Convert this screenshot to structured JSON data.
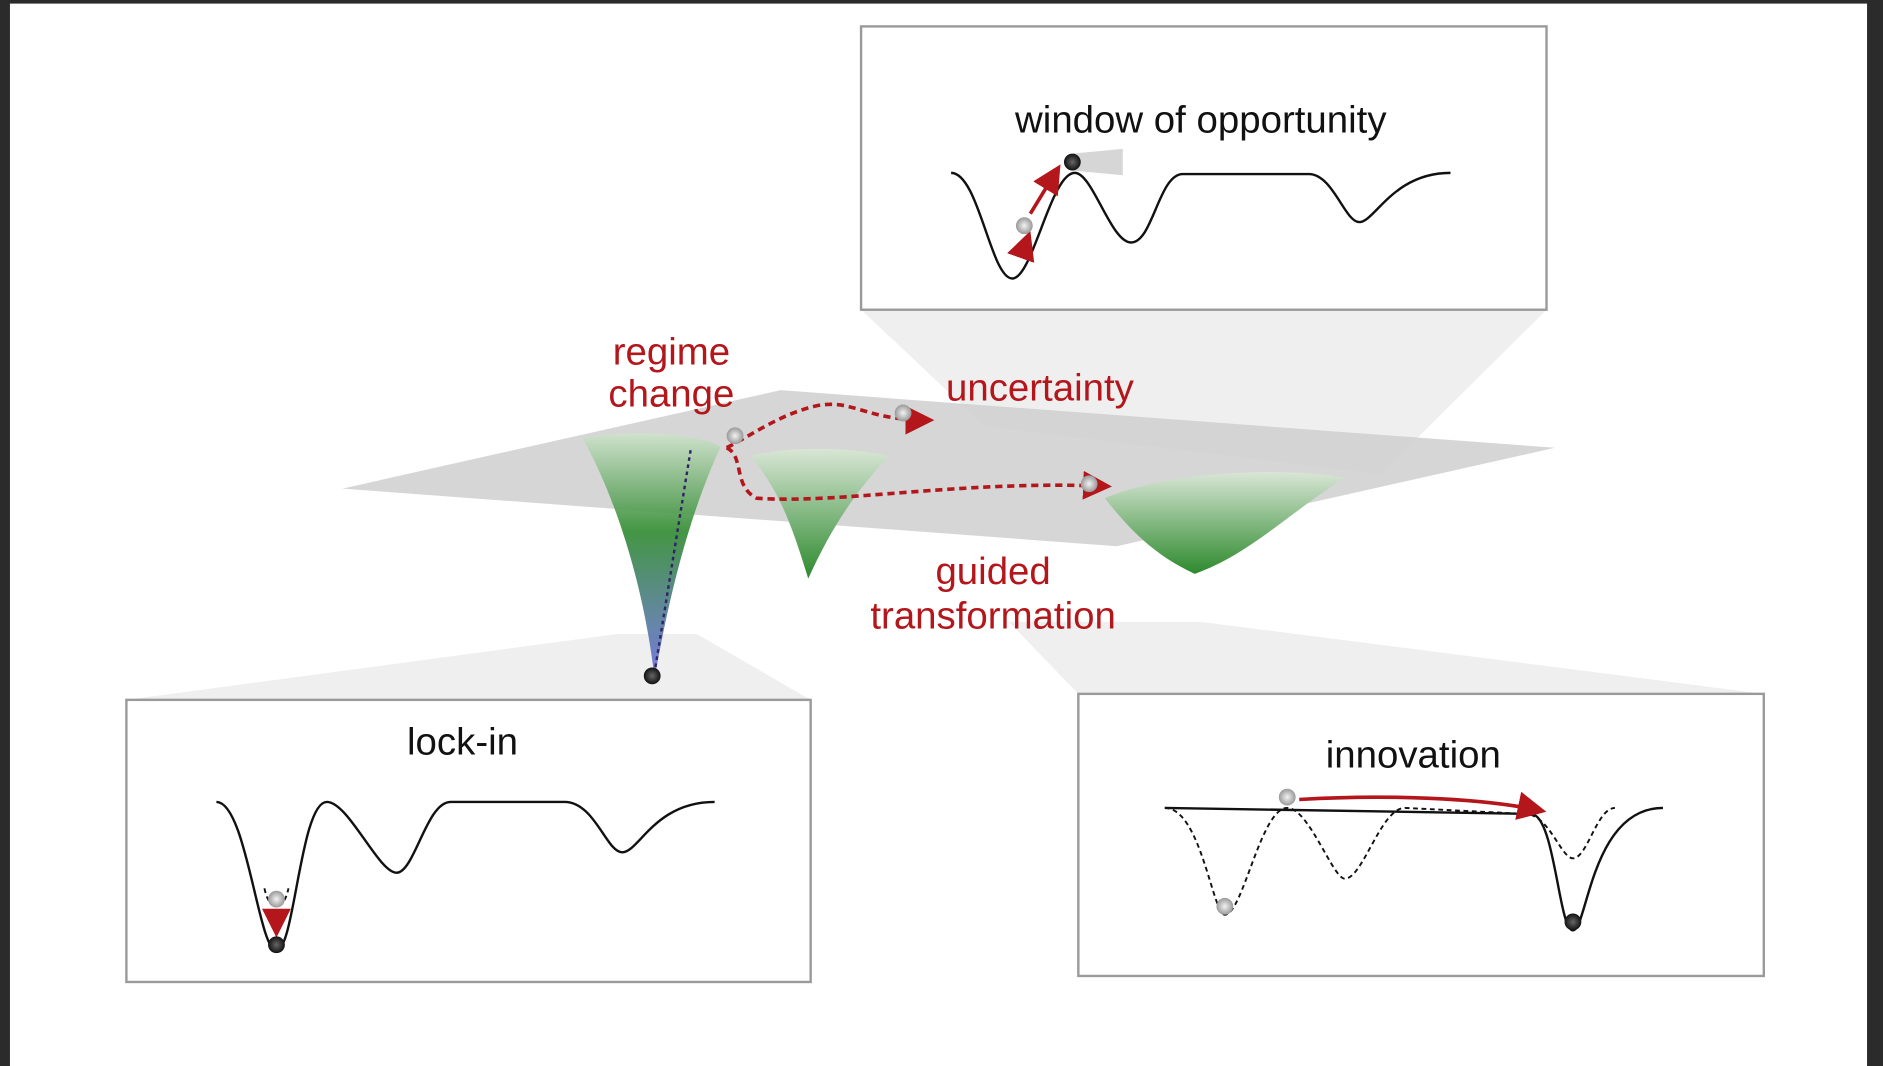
{
  "panels": [
    {
      "title": "window of opportunity"
    },
    {
      "title": "lock-in"
    },
    {
      "title": "innovation"
    }
  ],
  "annotations": [
    {
      "lines": [
        "regime",
        "change"
      ]
    },
    {
      "lines": [
        "uncertainty"
      ]
    },
    {
      "lines": [
        "guided",
        "transformation"
      ]
    }
  ]
}
